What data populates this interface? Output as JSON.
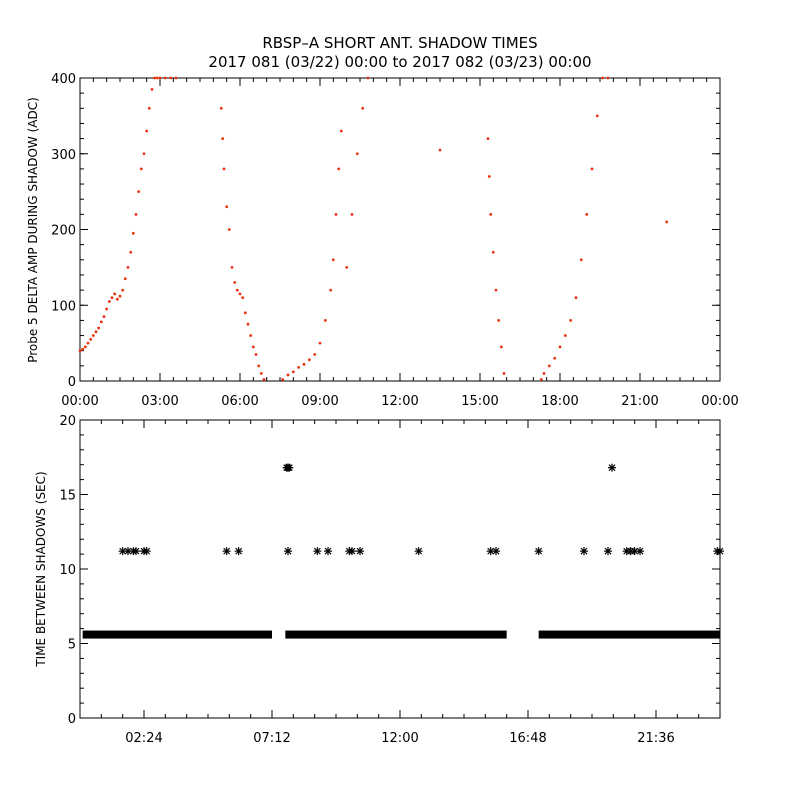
{
  "figure": {
    "title_line1": "RBSP–A SHORT ANT. SHADOW TIMES",
    "title_line2": "2017 081 (03/22) 00:00 to 2017 082 (03/23) 00:00"
  },
  "chart_data": [
    {
      "type": "scatter",
      "ylabel": "Probe 5 DELTA AMP DURING SHADOW (ADC)",
      "xlabel": "",
      "xlim": [
        0,
        24
      ],
      "ylim": [
        0,
        400
      ],
      "x_ticks": [
        0,
        3,
        6,
        9,
        12,
        15,
        18,
        21,
        24
      ],
      "x_tick_labels": [
        "00:00",
        "03:00",
        "06:00",
        "09:00",
        "12:00",
        "15:00",
        "18:00",
        "21:00",
        "00:00"
      ],
      "y_ticks": [
        0,
        100,
        200,
        300,
        400
      ],
      "y_tick_labels": [
        "0",
        "100",
        "200",
        "300",
        "400"
      ],
      "marker_color": "#e8330d",
      "series": [
        {
          "x": [
            0.0,
            0.1,
            0.2,
            0.3,
            0.4,
            0.5,
            0.6,
            0.7,
            0.8,
            0.9,
            1.0,
            1.1,
            1.2,
            1.3,
            1.4,
            1.5,
            1.6,
            1.7,
            1.8,
            1.9,
            2.0,
            2.1,
            2.2,
            2.3,
            2.4,
            2.5,
            2.6,
            2.7,
            2.8,
            2.9,
            3.0,
            3.2,
            3.4,
            3.6,
            5.3,
            5.35,
            5.4,
            5.5,
            5.6,
            5.7,
            5.8,
            5.9,
            6.0,
            6.1,
            6.2,
            6.3,
            6.4,
            6.5,
            6.6,
            6.7,
            6.8,
            6.9,
            7.6,
            7.8,
            8.0,
            8.2,
            8.4,
            8.6,
            8.8,
            9.0,
            9.2,
            9.4,
            9.5,
            9.6,
            9.7,
            9.8,
            10.0,
            10.2,
            10.4,
            10.6,
            10.8,
            13.5,
            15.3,
            15.35,
            15.4,
            15.5,
            15.6,
            15.7,
            15.8,
            15.9,
            17.3,
            17.4,
            17.6,
            17.8,
            18.0,
            18.2,
            18.4,
            18.6,
            18.8,
            19.0,
            19.2,
            19.4,
            19.6,
            19.8,
            22.0
          ],
          "y": [
            40,
            42,
            45,
            50,
            55,
            60,
            65,
            70,
            78,
            85,
            95,
            105,
            110,
            115,
            108,
            112,
            120,
            135,
            150,
            170,
            195,
            220,
            250,
            280,
            300,
            330,
            360,
            385,
            400,
            400,
            400,
            400,
            400,
            400,
            360,
            320,
            280,
            230,
            200,
            150,
            130,
            120,
            115,
            110,
            90,
            75,
            60,
            45,
            35,
            20,
            10,
            2,
            2,
            8,
            12,
            18,
            22,
            28,
            35,
            50,
            80,
            120,
            160,
            220,
            280,
            330,
            150,
            220,
            300,
            360,
            400,
            305,
            320,
            270,
            220,
            170,
            120,
            80,
            45,
            10,
            2,
            10,
            20,
            30,
            45,
            60,
            80,
            110,
            160,
            220,
            280,
            350,
            400,
            400,
            210
          ]
        }
      ]
    },
    {
      "type": "scatter",
      "ylabel": "TIME BETWEEN SHADOWS (SEC)",
      "xlabel": "",
      "xlim": [
        0,
        24
      ],
      "ylim": [
        0,
        20
      ],
      "x_ticks": [
        2.4,
        7.2,
        12.0,
        16.8,
        21.6
      ],
      "x_tick_labels": [
        "02:24",
        "07:12",
        "12:00",
        "16:48",
        "21:36"
      ],
      "y_ticks": [
        0,
        5,
        10,
        15,
        20
      ],
      "y_tick_labels": [
        "0",
        "5",
        "10",
        "15",
        "20"
      ],
      "marker_color": "#000000",
      "marker": "asterisk",
      "baseline_segments": [
        {
          "x_start": 0.1,
          "x_end": 7.2,
          "y": 5.6
        },
        {
          "x_start": 7.7,
          "x_end": 16.0,
          "y": 5.6
        },
        {
          "x_start": 17.2,
          "x_end": 24.0,
          "y": 5.6
        }
      ],
      "series": [
        {
          "x": [
            1.6,
            1.8,
            2.0,
            2.1,
            2.4,
            2.5,
            5.5,
            5.95,
            7.75,
            7.8,
            7.85,
            7.8,
            8.9,
            9.3,
            10.1,
            10.2,
            10.5,
            12.7,
            15.4,
            15.6,
            17.2,
            18.9,
            19.8,
            19.95,
            20.5,
            20.65,
            20.8,
            21.0,
            23.9,
            24.0
          ],
          "y": [
            11.2,
            11.2,
            11.2,
            11.2,
            11.2,
            11.2,
            11.2,
            11.2,
            16.8,
            16.8,
            16.8,
            11.2,
            11.2,
            11.2,
            11.2,
            11.2,
            11.2,
            11.2,
            11.2,
            11.2,
            11.2,
            11.2,
            11.2,
            16.8,
            11.2,
            11.2,
            11.2,
            11.2,
            11.2,
            11.2
          ]
        }
      ]
    }
  ]
}
